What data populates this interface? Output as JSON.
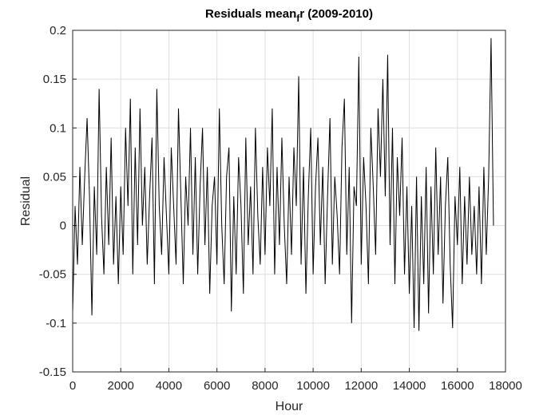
{
  "chart_data": {
    "type": "line",
    "title": {
      "main": "Residuals mean",
      "sub": "f",
      "rest": "r (2009-2010)"
    },
    "x_label": "Hour",
    "y_label": "Residual",
    "xlim": [
      0,
      18000
    ],
    "xticks": [
      0,
      2000,
      4000,
      6000,
      8000,
      10000,
      12000,
      14000,
      16000,
      18000
    ],
    "ylim": [
      -0.15,
      0.2
    ],
    "yticks": [
      -0.15,
      -0.1,
      -0.05,
      0,
      0.05,
      0.1,
      0.15,
      0.2
    ],
    "grid": true,
    "x": [
      0,
      100,
      200,
      300,
      400,
      500,
      600,
      700,
      800,
      900,
      1000,
      1100,
      1200,
      1300,
      1400,
      1500,
      1600,
      1700,
      1800,
      1900,
      2000,
      2100,
      2200,
      2300,
      2400,
      2500,
      2600,
      2700,
      2800,
      2900,
      3000,
      3100,
      3200,
      3300,
      3400,
      3500,
      3600,
      3700,
      3800,
      3900,
      4000,
      4100,
      4200,
      4300,
      4400,
      4500,
      4600,
      4700,
      4800,
      4900,
      5000,
      5100,
      5200,
      5300,
      5400,
      5500,
      5600,
      5700,
      5800,
      5900,
      6000,
      6100,
      6200,
      6300,
      6400,
      6500,
      6600,
      6700,
      6800,
      6900,
      7000,
      7100,
      7200,
      7300,
      7400,
      7500,
      7600,
      7700,
      7800,
      7900,
      8000,
      8100,
      8200,
      8300,
      8400,
      8500,
      8600,
      8700,
      8800,
      8900,
      9000,
      9100,
      9200,
      9300,
      9400,
      9500,
      9600,
      9700,
      9800,
      9900,
      10000,
      10100,
      10200,
      10300,
      10400,
      10500,
      10600,
      10700,
      10800,
      10900,
      11000,
      11100,
      11200,
      11300,
      11400,
      11500,
      11600,
      11700,
      11800,
      11900,
      12000,
      12100,
      12200,
      12300,
      12400,
      12500,
      12600,
      12700,
      12800,
      12900,
      13000,
      13100,
      13200,
      13300,
      13400,
      13500,
      13600,
      13700,
      13800,
      13900,
      14000,
      14100,
      14200,
      14300,
      14400,
      14500,
      14600,
      14700,
      14800,
      14900,
      15000,
      15100,
      15200,
      15300,
      15400,
      15500,
      15600,
      15700,
      15800,
      15900,
      16000,
      16100,
      16200,
      16300,
      16400,
      16500,
      16600,
      16700,
      16800,
      16900,
      17000,
      17100,
      17200,
      17300,
      17400,
      17500
    ],
    "series": [
      {
        "color": "#000000",
        "values": [
          -0.09,
          0.02,
          -0.04,
          0.06,
          -0.02,
          0.05,
          0.11,
          0.03,
          -0.092,
          0.04,
          -0.03,
          0.14,
          0.01,
          -0.05,
          0.06,
          -0.02,
          0.09,
          -0.04,
          0.03,
          -0.06,
          0.04,
          -0.03,
          0.1,
          0.02,
          0.13,
          -0.05,
          0.08,
          -0.02,
          0.12,
          0.0,
          0.06,
          -0.04,
          0.03,
          0.09,
          -0.06,
          0.14,
          0.02,
          -0.03,
          0.07,
          0.01,
          -0.05,
          0.08,
          0.02,
          -0.04,
          0.12,
          0.03,
          -0.06,
          0.05,
          0.0,
          0.1,
          -0.03,
          0.07,
          -0.05,
          0.04,
          0.1,
          -0.02,
          0.06,
          -0.07,
          0.02,
          0.05,
          -0.04,
          0.12,
          0.0,
          -0.06,
          0.05,
          0.08,
          -0.088,
          0.03,
          -0.05,
          0.07,
          0.02,
          -0.07,
          0.09,
          -0.02,
          0.04,
          -0.05,
          0.1,
          0.01,
          -0.04,
          0.06,
          -0.03,
          0.08,
          0.02,
          0.12,
          -0.05,
          0.06,
          -0.02,
          0.09,
          0.0,
          -0.06,
          0.05,
          -0.03,
          0.08,
          0.02,
          0.153,
          -0.04,
          0.06,
          -0.07,
          0.03,
          0.1,
          -0.05,
          0.04,
          0.09,
          -0.02,
          0.06,
          -0.06,
          0.03,
          0.11,
          -0.04,
          0.05,
          0.01,
          -0.05,
          0.08,
          0.13,
          -0.03,
          0.06,
          -0.1,
          0.04,
          0.02,
          0.173,
          -0.04,
          0.07,
          0.02,
          -0.06,
          0.1,
          0.04,
          -0.03,
          0.12,
          0.05,
          0.15,
          0.03,
          0.175,
          -0.02,
          0.1,
          -0.06,
          0.07,
          0.01,
          0.09,
          -0.05,
          0.04,
          -0.07,
          0.02,
          -0.105,
          0.05,
          -0.108,
          0.03,
          -0.06,
          0.06,
          -0.09,
          0.04,
          -0.05,
          0.08,
          -0.03,
          0.05,
          -0.08,
          0.02,
          0.07,
          -0.04,
          -0.105,
          0.03,
          -0.02,
          0.06,
          -0.06,
          0.03,
          -0.04,
          0.05,
          -0.03,
          0.02,
          -0.05,
          0.04,
          -0.06,
          0.06,
          -0.03,
          0.05,
          0.192,
          0.0
        ]
      }
    ]
  }
}
